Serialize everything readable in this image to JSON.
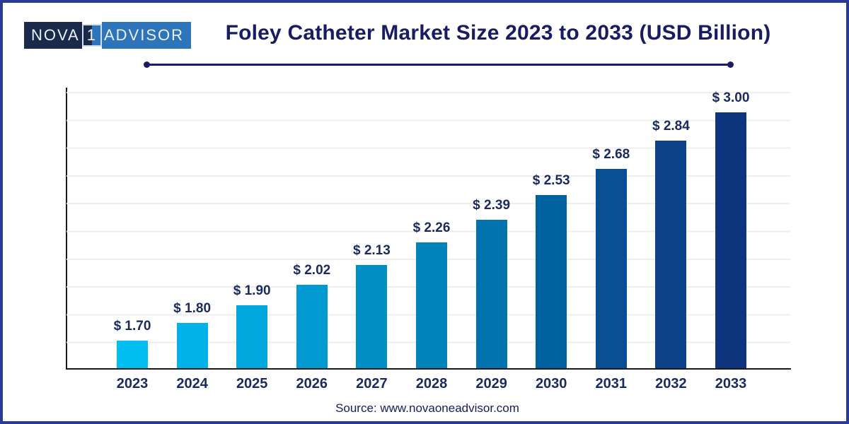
{
  "page": {
    "background": "#FFFFFF",
    "border_color": "#2B3A92"
  },
  "logo": {
    "text_left": "NOVA",
    "text_box": "1",
    "text_right": "ADVISOR",
    "left_bg": "#1B2A4A",
    "right_bg": "#2E74BA",
    "text_color": "#EAF0F8"
  },
  "header": {
    "title": "Foley Catheter Market Size 2023 to 2033 (USD Billion)",
    "title_color": "#191B63"
  },
  "chart_data": {
    "type": "bar",
    "title": "Foley Catheter Market Size 2023 to 2033 (USD Billion)",
    "unit": "USD Billion",
    "categories": [
      "2023",
      "2024",
      "2025",
      "2026",
      "2027",
      "2028",
      "2029",
      "2030",
      "2031",
      "2032",
      "2033"
    ],
    "values": [
      1.7,
      1.8,
      1.9,
      2.02,
      2.13,
      2.26,
      2.39,
      2.53,
      2.68,
      2.84,
      3.0
    ],
    "value_labels": [
      "$ 1.70",
      "$ 1.80",
      "$ 1.90",
      "$ 2.02",
      "$ 2.13",
      "$ 2.26",
      "$ 2.39",
      "$ 2.53",
      "$ 2.68",
      "$ 2.84",
      "$ 3.00"
    ],
    "bar_colors": [
      "#00BFF0",
      "#00B2E8",
      "#00A6DC",
      "#009AD1",
      "#008EC5",
      "#0082BA",
      "#0073AD",
      "#00619F",
      "#0A4F93",
      "#0B4288",
      "#0C357D"
    ],
    "ylim": [
      1.535,
      3.117
    ],
    "grid": true,
    "gridline_count": 10,
    "xlabel": "",
    "ylabel": "",
    "legend": false,
    "label_color": "#1B2A5E",
    "axis_color": "#1A1A1A",
    "gridline_color": "#EEEEEF"
  },
  "footer": {
    "source": "Source: www.novaoneadvisor.com"
  }
}
